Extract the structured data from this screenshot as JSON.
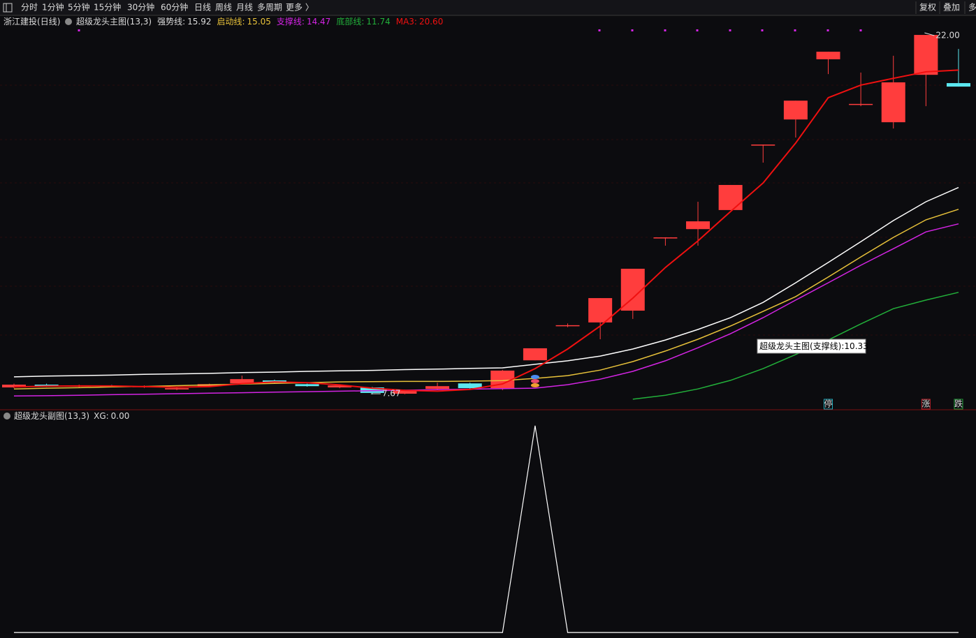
{
  "toolbar": {
    "tabs": [
      "分时",
      "1分钟",
      "5分钟",
      "15分钟",
      "30分钟",
      "60分钟",
      "日线",
      "周线",
      "月线",
      "多周期",
      "更多 〉"
    ],
    "active": 6,
    "buttons": [
      "复权",
      "叠加",
      "多"
    ]
  },
  "main": {
    "stock": "浙江建投",
    "period": "(日线)",
    "indicator": "超级龙头主图(13,3)",
    "ylim": [
      7.06,
      22.78
    ],
    "candles": {
      "open": [
        7.95,
        8.06,
        7.98,
        8.02,
        7.96,
        7.87,
        8.0,
        8.11,
        8.23,
        8.08,
        7.95,
        7.95,
        7.7,
        7.89,
        8.11,
        7.92,
        9.03,
        10.43,
        10.54,
        11.01,
        13.93,
        14.26,
        15.02,
        17.63,
        18.63,
        21.03,
        19.25,
        18.52,
        20.41,
        20.08
      ],
      "close": [
        8.06,
        8.0,
        8.03,
        7.99,
        8.0,
        7.92,
        8.08,
        8.28,
        8.14,
        8.0,
        8.03,
        7.73,
        7.84,
        8.0,
        7.92,
        8.62,
        9.51,
        10.43,
        11.51,
        12.68,
        13.93,
        14.57,
        16.02,
        17.63,
        19.38,
        21.33,
        19.25,
        20.11,
        22.0,
        19.94
      ],
      "high": [
        8.1,
        8.1,
        8.06,
        8.05,
        8.03,
        7.95,
        8.1,
        8.42,
        8.26,
        8.1,
        8.06,
        7.97,
        7.86,
        8.14,
        8.14,
        8.65,
        9.51,
        10.5,
        11.51,
        12.68,
        13.93,
        15.35,
        16.02,
        17.63,
        19.38,
        21.33,
        20.5,
        21.17,
        22.0,
        21.44
      ],
      "low": [
        7.92,
        7.97,
        7.95,
        7.96,
        7.93,
        7.84,
        7.97,
        8.08,
        8.12,
        7.98,
        7.92,
        7.67,
        7.68,
        7.87,
        7.9,
        7.84,
        9.03,
        10.35,
        9.87,
        10.68,
        13.6,
        13.6,
        15.02,
        16.91,
        17.91,
        20.44,
        19.16,
        18.27,
        19.16,
        19.94
      ]
    },
    "lines": [
      {
        "name": "强势线:",
        "value": 15.92,
        "color": "#ffffff",
        "values": [
          8.37,
          8.4,
          8.42,
          8.44,
          8.47,
          8.49,
          8.51,
          8.54,
          8.56,
          8.59,
          8.61,
          8.63,
          8.66,
          8.68,
          8.71,
          8.73,
          8.87,
          9.01,
          9.2,
          9.48,
          9.84,
          10.26,
          10.73,
          11.34,
          12.12,
          12.93,
          13.76,
          14.6,
          15.35,
          15.92
        ]
      },
      {
        "name": "启动线:",
        "value": 15.05,
        "color": "#e8c23a",
        "values": [
          7.89,
          7.92,
          7.94,
          7.97,
          7.99,
          8.02,
          8.05,
          8.08,
          8.11,
          8.14,
          8.17,
          8.18,
          8.19,
          8.19,
          8.2,
          8.22,
          8.31,
          8.42,
          8.64,
          8.98,
          9.4,
          9.87,
          10.4,
          10.98,
          11.57,
          12.35,
          13.15,
          13.93,
          14.63,
          15.05
        ]
      },
      {
        "name": "支撑线:",
        "value": 14.47,
        "color": "#d424e4",
        "values": [
          7.61,
          7.62,
          7.64,
          7.66,
          7.68,
          7.7,
          7.72,
          7.74,
          7.76,
          7.78,
          7.8,
          7.82,
          7.84,
          7.86,
          7.88,
          7.9,
          7.92,
          8.06,
          8.28,
          8.59,
          9.01,
          9.53,
          10.09,
          10.73,
          11.43,
          12.12,
          12.82,
          13.48,
          14.15,
          14.47
        ]
      },
      {
        "name": "底部线:",
        "value": 11.74,
        "color": "#22b03a",
        "values": [
          null,
          null,
          null,
          null,
          null,
          null,
          null,
          null,
          null,
          null,
          null,
          null,
          null,
          null,
          null,
          null,
          null,
          null,
          null,
          7.48,
          7.64,
          7.89,
          8.23,
          8.7,
          9.26,
          9.84,
          10.48,
          11.09,
          11.43,
          11.74
        ]
      },
      {
        "name": "MA3:",
        "value": {
          "value": 20.6,
          "label": "20.60"
        },
        "color": "#f01010",
        "values": [
          7.97,
          8.0,
          8.01,
          8.01,
          7.98,
          7.96,
          7.98,
          8.1,
          8.17,
          8.14,
          8.05,
          7.92,
          7.83,
          7.8,
          7.87,
          8.09,
          8.7,
          9.48,
          10.4,
          11.51,
          12.73,
          13.79,
          14.96,
          16.1,
          17.69,
          19.5,
          20.0,
          20.27,
          20.53,
          20.6
        ]
      }
    ],
    "high_label": {
      "value": 22,
      "label": "22.00"
    },
    "low_label": 7.67,
    "tooltip": {
      "text": "超级龙头主图(支撑线):",
      "value": 10.33
    },
    "signals": [
      {
        "candle": 25,
        "text": "停",
        "color": "#21a9b8"
      },
      {
        "candle": 28,
        "text": "涨",
        "color": "#c0202a"
      },
      {
        "candle": 29,
        "text": "跌",
        "color": "#22a03a"
      }
    ]
  },
  "sub": {
    "indicator": "超级龙头副图(13,3)",
    "name": "XG:",
    "value": {
      "value": 0,
      "label": "0.00"
    },
    "ylim": [
      -0.02,
      1.02
    ],
    "color": "#ffffff",
    "values": [
      0,
      0,
      0,
      0,
      0,
      0,
      0,
      0,
      0,
      0,
      0,
      0,
      0,
      0,
      0,
      0,
      1,
      0,
      0,
      0,
      0,
      0,
      0,
      0,
      0,
      0,
      0,
      0,
      0,
      0
    ]
  }
}
